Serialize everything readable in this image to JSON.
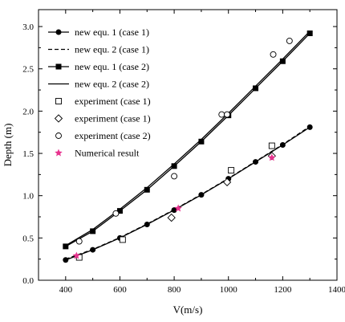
{
  "chart_data": {
    "type": "scatter",
    "xlabel": "V(m/s)",
    "ylabel": "Depth (m)",
    "xlim": [
      300,
      1400
    ],
    "ylim": [
      0.0,
      3.2
    ],
    "xticks": [
      400,
      600,
      800,
      1000,
      1200,
      1400
    ],
    "yticks": [
      0.0,
      0.5,
      1.0,
      1.5,
      2.0,
      2.5,
      3.0
    ],
    "xtick_labels": [
      "400",
      "600",
      "800",
      "1000",
      "1200",
      "1400"
    ],
    "ytick_labels": [
      "0.0",
      "0.5",
      "1.0",
      "1.5",
      "2.0",
      "2.5",
      "3.0"
    ],
    "grid": false,
    "legend_position": "top-left",
    "series": [
      {
        "name": "new equ. 1 (case 1)",
        "style": "line-circle",
        "x": [
          400,
          500,
          600,
          700,
          800,
          900,
          1000,
          1100,
          1200,
          1300
        ],
        "y": [
          0.24,
          0.36,
          0.5,
          0.66,
          0.83,
          1.01,
          1.2,
          1.4,
          1.6,
          1.81
        ]
      },
      {
        "name": "new equ. 2 (case 1)",
        "style": "dashed",
        "x": [
          400,
          500,
          600,
          700,
          800,
          900,
          1000,
          1100,
          1200,
          1300
        ],
        "y": [
          0.25,
          0.365,
          0.505,
          0.665,
          0.835,
          1.015,
          1.205,
          1.405,
          1.605,
          1.82
        ]
      },
      {
        "name": "new equ. 1 (case 2)",
        "style": "line-square",
        "x": [
          400,
          500,
          600,
          700,
          800,
          900,
          1000,
          1100,
          1200,
          1300
        ],
        "y": [
          0.4,
          0.58,
          0.82,
          1.07,
          1.35,
          1.64,
          1.95,
          2.27,
          2.59,
          2.92
        ]
      },
      {
        "name": "new equ. 2 (case 2)",
        "style": "solid",
        "x": [
          400,
          500,
          600,
          700,
          800,
          900,
          1000,
          1100,
          1200,
          1300
        ],
        "y": [
          0.41,
          0.6,
          0.84,
          1.095,
          1.375,
          1.665,
          1.975,
          2.295,
          2.615,
          2.945
        ]
      },
      {
        "name": "experiment (case 1)",
        "style": "open-square",
        "x": [
          450,
          610,
          1010,
          1160
        ],
        "y": [
          0.27,
          0.48,
          1.3,
          1.59
        ]
      },
      {
        "name": "experiment (case 1)",
        "style": "open-diamond",
        "x": [
          790,
          995,
          1160
        ],
        "y": [
          0.74,
          1.16,
          1.47
        ]
      },
      {
        "name": "experiment (case 2)",
        "style": "open-circle",
        "x": [
          450,
          585,
          800,
          975,
          995,
          1165,
          1225
        ],
        "y": [
          0.46,
          0.79,
          1.23,
          1.96,
          1.96,
          2.67,
          2.83
        ]
      },
      {
        "name": "Numerical result",
        "style": "star",
        "color": "#e8338f",
        "x": [
          440,
          815,
          1160
        ],
        "y": [
          0.29,
          0.85,
          1.45
        ]
      }
    ]
  }
}
